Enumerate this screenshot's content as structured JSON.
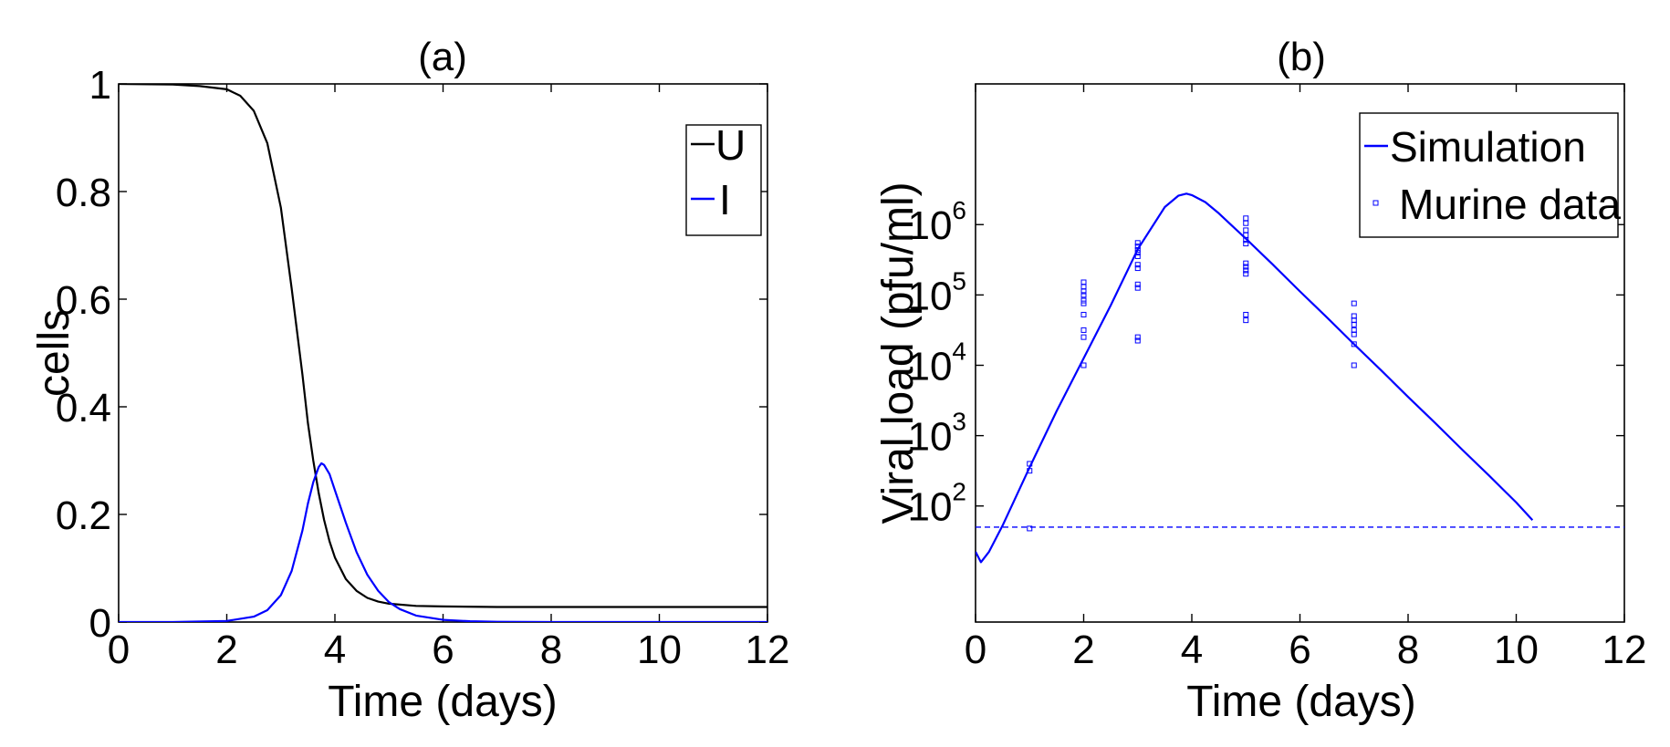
{
  "chart_data": [
    {
      "type": "line",
      "title": "(a)",
      "xlabel": "Time (days)",
      "ylabel": "cells",
      "xlim": [
        0,
        12
      ],
      "ylim": [
        0,
        1
      ],
      "xticks": [
        0,
        2,
        4,
        6,
        8,
        10,
        12
      ],
      "yticks": [
        0,
        0.2,
        0.4,
        0.6,
        0.8,
        1
      ],
      "xtick_labels": [
        "0",
        "2",
        "4",
        "6",
        "8",
        "10",
        "12"
      ],
      "ytick_labels": [
        "0",
        "0.2",
        "0.4",
        "0.6",
        "0.8",
        "1"
      ],
      "grid": false,
      "legend_position": "top-right",
      "series": [
        {
          "name": "U",
          "color": "#000000",
          "x": [
            0,
            1,
            1.5,
            2,
            2.25,
            2.5,
            2.75,
            3,
            3.2,
            3.4,
            3.5,
            3.6,
            3.7,
            3.8,
            3.9,
            4,
            4.2,
            4.4,
            4.6,
            4.8,
            5,
            5.5,
            6,
            7,
            8,
            9,
            10,
            12
          ],
          "y": [
            1,
            0.999,
            0.996,
            0.99,
            0.978,
            0.95,
            0.89,
            0.77,
            0.62,
            0.46,
            0.37,
            0.3,
            0.24,
            0.19,
            0.15,
            0.12,
            0.08,
            0.058,
            0.045,
            0.038,
            0.034,
            0.03,
            0.029,
            0.028,
            0.028,
            0.028,
            0.028,
            0.028
          ]
        },
        {
          "name": "I",
          "color": "#0000ff",
          "x": [
            0,
            1,
            2,
            2.5,
            2.75,
            3,
            3.2,
            3.4,
            3.5,
            3.6,
            3.7,
            3.75,
            3.8,
            3.9,
            4,
            4.2,
            4.4,
            4.6,
            4.8,
            5,
            5.2,
            5.5,
            6,
            6.5,
            7,
            8,
            10,
            12
          ],
          "y": [
            0,
            0,
            0.002,
            0.01,
            0.022,
            0.05,
            0.095,
            0.17,
            0.22,
            0.26,
            0.288,
            0.295,
            0.292,
            0.275,
            0.245,
            0.185,
            0.13,
            0.088,
            0.058,
            0.037,
            0.024,
            0.012,
            0.004,
            0.0015,
            0.0005,
            0,
            0,
            0
          ]
        }
      ]
    },
    {
      "type": "line",
      "title": "(b)",
      "xlabel": "Time (days)",
      "ylabel": "Viral load (pfu/ml)",
      "xlim": [
        0,
        12
      ],
      "ylim": [
        0.35,
        8.0
      ],
      "yscale": "log10",
      "xticks": [
        0,
        2,
        4,
        6,
        8,
        10,
        12
      ],
      "xtick_labels": [
        "0",
        "2",
        "4",
        "6",
        "8",
        "10",
        "12"
      ],
      "ytick_exponents": [
        "2",
        "3",
        "4",
        "5",
        "6"
      ],
      "ytick_base": "10",
      "grid": false,
      "legend_position": "top-right",
      "series": [
        {
          "name": "Simulation",
          "color": "#0000ff",
          "x": [
            0,
            0.1,
            0.25,
            0.5,
            1,
            1.5,
            2,
            2.5,
            3,
            3.5,
            3.75,
            3.9,
            4,
            4.25,
            4.5,
            4.75,
            5,
            5.5,
            6,
            6.5,
            7,
            7.5,
            8,
            8.5,
            9,
            9.5,
            10,
            10.3
          ],
          "y": [
            1.35,
            1.2,
            1.35,
            1.72,
            2.55,
            3.35,
            4.1,
            4.85,
            5.65,
            6.25,
            6.41,
            6.44,
            6.42,
            6.32,
            6.16,
            5.98,
            5.8,
            5.43,
            5.05,
            4.68,
            4.3,
            3.93,
            3.55,
            3.18,
            2.8,
            2.43,
            2.05,
            1.8
          ]
        },
        {
          "name": "Murine data",
          "color": "#0000ff",
          "marker": "square",
          "points": [
            [
              1,
              2.6
            ],
            [
              1,
              2.5
            ],
            [
              1,
              1.68
            ],
            [
              2,
              5.18
            ],
            [
              2,
              5.12
            ],
            [
              2,
              5.05
            ],
            [
              2,
              5.0
            ],
            [
              2,
              4.92
            ],
            [
              2,
              4.88
            ],
            [
              2,
              4.72
            ],
            [
              2,
              4.5
            ],
            [
              2,
              4.4
            ],
            [
              2,
              4.0
            ],
            [
              3,
              5.74
            ],
            [
              3,
              5.69
            ],
            [
              3,
              5.64
            ],
            [
              3,
              5.6
            ],
            [
              3,
              5.55
            ],
            [
              3,
              5.43
            ],
            [
              3,
              5.38
            ],
            [
              3,
              5.15
            ],
            [
              3,
              5.1
            ],
            [
              3,
              4.4
            ],
            [
              3,
              4.35
            ],
            [
              5,
              6.09
            ],
            [
              5,
              6.02
            ],
            [
              5,
              5.92
            ],
            [
              5,
              5.85
            ],
            [
              5,
              5.78
            ],
            [
              5,
              5.73
            ],
            [
              5,
              5.45
            ],
            [
              5,
              5.4
            ],
            [
              5,
              5.35
            ],
            [
              5,
              5.3
            ],
            [
              5,
              4.72
            ],
            [
              5,
              4.64
            ],
            [
              7,
              4.88
            ],
            [
              7,
              4.7
            ],
            [
              7,
              4.64
            ],
            [
              7,
              4.58
            ],
            [
              7,
              4.5
            ],
            [
              7,
              4.44
            ],
            [
              7,
              4.3
            ],
            [
              7,
              4.0
            ]
          ]
        },
        {
          "name": "",
          "color": "#0000ff",
          "style": "dashed",
          "x": [
            0,
            12
          ],
          "y": [
            1.7,
            1.7
          ]
        }
      ]
    }
  ]
}
